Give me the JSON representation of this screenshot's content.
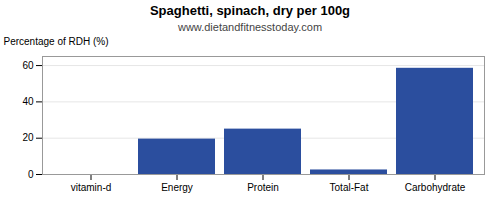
{
  "chart_data": {
    "type": "bar",
    "title": "Spaghetti, spinach, dry per 100g",
    "subtitle": "www.dietandfitnesstoday.com",
    "categories": [
      "vitamin-d",
      "Energy",
      "Protein",
      "Total-Fat",
      "Carbohydrate"
    ],
    "values": [
      0,
      19.5,
      25,
      2.5,
      58.5
    ],
    "color": "#2b4e9e",
    "ylabel": "Percentage of RDH (%)",
    "ylim": [
      0,
      65
    ],
    "yticks": [
      0,
      20,
      40,
      60
    ],
    "grid": true
  }
}
